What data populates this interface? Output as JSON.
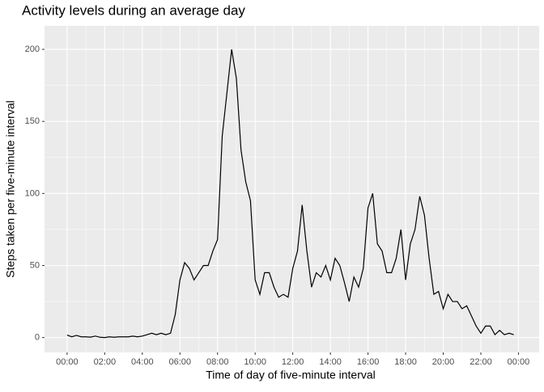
{
  "chart_data": {
    "type": "line",
    "title": "Activity levels during an average day",
    "x_label": "Time of day of five-minute interval",
    "y_label": "Steps taken per five-minute interval",
    "x": [
      0,
      0.25,
      0.5,
      0.75,
      1,
      1.25,
      1.5,
      1.75,
      2,
      2.25,
      2.5,
      2.75,
      3,
      3.25,
      3.5,
      3.75,
      4,
      4.25,
      4.5,
      4.75,
      5,
      5.25,
      5.5,
      5.75,
      6,
      6.25,
      6.5,
      6.75,
      7,
      7.25,
      7.5,
      7.75,
      8,
      8.25,
      8.5,
      8.75,
      9,
      9.25,
      9.5,
      9.75,
      10,
      10.25,
      10.5,
      10.75,
      11,
      11.25,
      11.5,
      11.75,
      12,
      12.25,
      12.5,
      12.75,
      13,
      13.25,
      13.5,
      13.75,
      14,
      14.25,
      14.5,
      14.75,
      15,
      15.25,
      15.5,
      15.75,
      16,
      16.25,
      16.5,
      16.75,
      17,
      17.25,
      17.5,
      17.75,
      18,
      18.25,
      18.5,
      18.75,
      19,
      19.25,
      19.5,
      19.75,
      20,
      20.25,
      20.5,
      20.75,
      21,
      21.25,
      21.5,
      21.75,
      22,
      22.25,
      22.5,
      22.75,
      23,
      23.25,
      23.5,
      23.75
    ],
    "series": [
      {
        "name": "steps",
        "color": "#000000",
        "values": [
          1.7,
          0.5,
          1.5,
          0.5,
          0.5,
          0.3,
          1,
          0.2,
          0,
          0.5,
          0.2,
          0.5,
          0.5,
          0.5,
          1,
          0.5,
          1,
          2,
          3,
          2,
          3,
          2,
          3,
          16,
          40,
          52,
          48,
          40,
          45,
          50,
          50,
          60,
          68,
          140,
          170,
          200,
          180,
          130,
          108,
          95,
          40,
          30,
          45,
          45,
          35,
          28,
          30,
          28,
          48,
          60,
          92,
          60,
          35,
          45,
          42,
          50,
          40,
          55,
          50,
          38,
          25,
          42,
          35,
          48,
          90,
          100,
          65,
          60,
          45,
          45,
          55,
          75,
          40,
          65,
          75,
          98,
          85,
          55,
          30,
          32,
          20,
          30,
          25,
          25,
          20,
          22,
          15,
          8,
          3,
          8,
          8,
          2,
          5,
          2,
          3,
          2
        ]
      }
    ],
    "xlim": [
      -1.2,
      25.1
    ],
    "xticks": [
      {
        "value": 0,
        "label": "00:00"
      },
      {
        "value": 2,
        "label": "02:00"
      },
      {
        "value": 4,
        "label": "04:00"
      },
      {
        "value": 6,
        "label": "06:00"
      },
      {
        "value": 8,
        "label": "08:00"
      },
      {
        "value": 10,
        "label": "10:00"
      },
      {
        "value": 12,
        "label": "12:00"
      },
      {
        "value": 14,
        "label": "14:00"
      },
      {
        "value": 16,
        "label": "16:00"
      },
      {
        "value": 18,
        "label": "18:00"
      },
      {
        "value": 20,
        "label": "20:00"
      },
      {
        "value": 22,
        "label": "22:00"
      },
      {
        "value": 24,
        "label": "00:00"
      }
    ],
    "ylim": [
      -10.3,
      216.3
    ],
    "yticks": [
      0,
      50,
      100,
      150,
      200
    ],
    "grid": true
  }
}
